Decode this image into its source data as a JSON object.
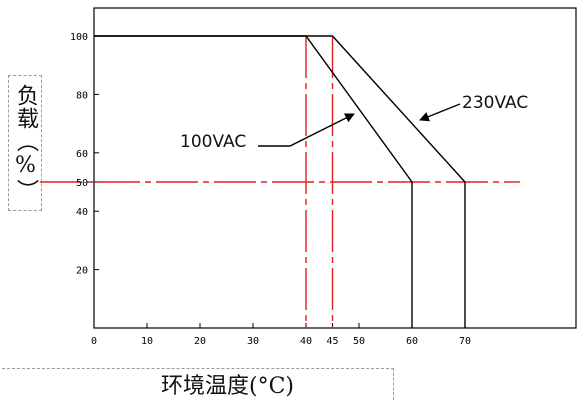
{
  "chart_data": {
    "type": "line",
    "xlabel": "环境温度(°C)",
    "ylabel": "负载（%）",
    "xlim": [
      0,
      80
    ],
    "ylim": [
      0,
      100
    ],
    "x_ticks": [
      0,
      10,
      20,
      30,
      40,
      45,
      50,
      60,
      70
    ],
    "y_ticks": [
      20,
      40,
      50,
      60,
      80,
      100
    ],
    "grid": false,
    "series": [
      {
        "name": "100VAC",
        "x": [
          0,
          40,
          60,
          60
        ],
        "y": [
          100,
          100,
          50,
          0
        ],
        "color": "#000000"
      },
      {
        "name": "230VAC",
        "x": [
          0,
          45,
          70,
          70
        ],
        "y": [
          100,
          100,
          50,
          0
        ],
        "color": "#000000"
      }
    ],
    "reference_lines": [
      {
        "axis": "x",
        "value": 40,
        "color": "#e02020",
        "style": "dash-dot"
      },
      {
        "axis": "x",
        "value": 45,
        "color": "#e02020",
        "style": "dash-dot"
      },
      {
        "axis": "y",
        "value": 50,
        "color": "#e02020",
        "style": "dash-dot"
      }
    ],
    "annotations": [
      {
        "text": "100VAC",
        "target_series": "100VAC"
      },
      {
        "text": "230VAC",
        "target_series": "230VAC"
      }
    ]
  }
}
